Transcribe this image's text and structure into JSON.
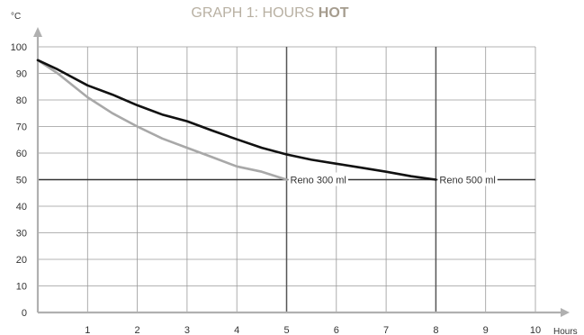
{
  "chart_data": {
    "type": "line",
    "title": {
      "prefix": "GRAPH 1: HOURS ",
      "emphasis": "HOT"
    },
    "xlabel": "Hours",
    "ylabel": "°C",
    "xlim": [
      0,
      10
    ],
    "ylim": [
      0,
      100
    ],
    "x_ticks": [
      1,
      2,
      3,
      4,
      5,
      6,
      7,
      8,
      9,
      10
    ],
    "y_ticks": [
      0,
      10,
      20,
      30,
      40,
      50,
      60,
      70,
      80,
      90,
      100
    ],
    "grid": true,
    "reference_lines": {
      "y": [
        50
      ],
      "x": [
        5,
        8
      ]
    },
    "colors": {
      "series_300": "#a8a8a8",
      "series_500": "#111111",
      "grid": "#9a9a9a",
      "axis": "#b0b0b0"
    },
    "series": [
      {
        "name": "Reno 300 ml",
        "x": [
          0,
          0.4,
          1,
          1.5,
          2,
          2.5,
          3,
          3.5,
          4,
          4.5,
          5
        ],
        "y": [
          95,
          90,
          81,
          75,
          70,
          65.5,
          62,
          58.5,
          55,
          53,
          50
        ]
      },
      {
        "name": "Reno 500 ml",
        "x": [
          0,
          0.4,
          1,
          1.5,
          2,
          2.5,
          3,
          3.5,
          4,
          4.5,
          5,
          5.5,
          6,
          6.5,
          7,
          7.5,
          8
        ],
        "y": [
          95,
          91.5,
          85.5,
          82,
          78,
          74.5,
          72,
          68.5,
          65.2,
          62,
          59.5,
          57.5,
          56,
          54.5,
          53,
          51.3,
          50
        ]
      }
    ]
  }
}
